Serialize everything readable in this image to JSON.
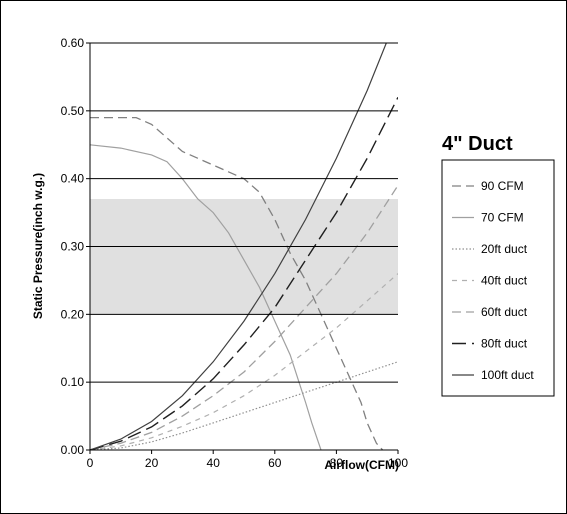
{
  "chart_data": {
    "type": "line",
    "xlabel": "Airflow(CFM)",
    "ylabel": "Static Pressure(inch w.g.)",
    "xlim": [
      0,
      100
    ],
    "ylim": [
      0,
      0.6
    ],
    "xticks": [
      "0",
      "20",
      "40",
      "60",
      "80",
      "100"
    ],
    "yticks": [
      "0.00",
      "0.10",
      "0.20",
      "0.30",
      "0.40",
      "0.50",
      "0.60"
    ],
    "grid": "horizontal",
    "shaded_band": [
      0.2,
      0.37
    ],
    "shaded_color": "#e0e0e0",
    "legend_title": "4\" Duct",
    "legend_position": "right",
    "series": [
      {
        "name": "90 CFM",
        "style": "dash-medium",
        "color": "#808080",
        "x": [
          0,
          10,
          15,
          20,
          30,
          40,
          50,
          55,
          60,
          65,
          70,
          75,
          80,
          85,
          88,
          90,
          93,
          95
        ],
        "y": [
          0.49,
          0.49,
          0.49,
          0.48,
          0.44,
          0.42,
          0.4,
          0.38,
          0.34,
          0.29,
          0.25,
          0.2,
          0.15,
          0.1,
          0.07,
          0.04,
          0.01,
          0.0
        ]
      },
      {
        "name": "70 CFM",
        "style": "solid",
        "color": "#a0a0a0",
        "x": [
          0,
          10,
          20,
          25,
          30,
          35,
          40,
          45,
          50,
          55,
          60,
          65,
          70,
          72,
          75
        ],
        "y": [
          0.45,
          0.445,
          0.435,
          0.425,
          0.4,
          0.37,
          0.35,
          0.32,
          0.28,
          0.24,
          0.19,
          0.14,
          0.07,
          0.04,
          0.0
        ]
      },
      {
        "name": "20ft duct",
        "style": "dotted",
        "color": "#909090",
        "x": [
          0,
          10,
          20,
          30,
          40,
          50,
          60,
          70,
          80,
          90,
          100
        ],
        "y": [
          0,
          0.003,
          0.012,
          0.025,
          0.04,
          0.055,
          0.07,
          0.085,
          0.1,
          0.115,
          0.13
        ]
      },
      {
        "name": "40ft duct",
        "style": "dash-short",
        "color": "#b0b0b0",
        "x": [
          0,
          10,
          20,
          30,
          40,
          50,
          60,
          70,
          80,
          90,
          100
        ],
        "y": [
          0,
          0.006,
          0.018,
          0.035,
          0.055,
          0.08,
          0.11,
          0.145,
          0.18,
          0.22,
          0.26
        ]
      },
      {
        "name": "60ft duct",
        "style": "dash-medium",
        "color": "#a0a0a0",
        "x": [
          0,
          10,
          20,
          30,
          40,
          50,
          60,
          70,
          80,
          90,
          100
        ],
        "y": [
          0,
          0.01,
          0.026,
          0.05,
          0.08,
          0.115,
          0.16,
          0.21,
          0.26,
          0.32,
          0.39
        ]
      },
      {
        "name": "80ft duct",
        "style": "dash-long",
        "color": "#202020",
        "x": [
          0,
          10,
          20,
          30,
          40,
          50,
          60,
          70,
          80,
          90,
          100
        ],
        "y": [
          0,
          0.013,
          0.034,
          0.065,
          0.105,
          0.155,
          0.21,
          0.28,
          0.35,
          0.43,
          0.52
        ]
      },
      {
        "name": "100ft duct",
        "style": "solid",
        "color": "#404040",
        "x": [
          0,
          10,
          20,
          30,
          40,
          50,
          60,
          70,
          80,
          90,
          98
        ],
        "y": [
          0,
          0.016,
          0.042,
          0.08,
          0.13,
          0.19,
          0.26,
          0.34,
          0.43,
          0.53,
          0.62
        ]
      }
    ]
  }
}
